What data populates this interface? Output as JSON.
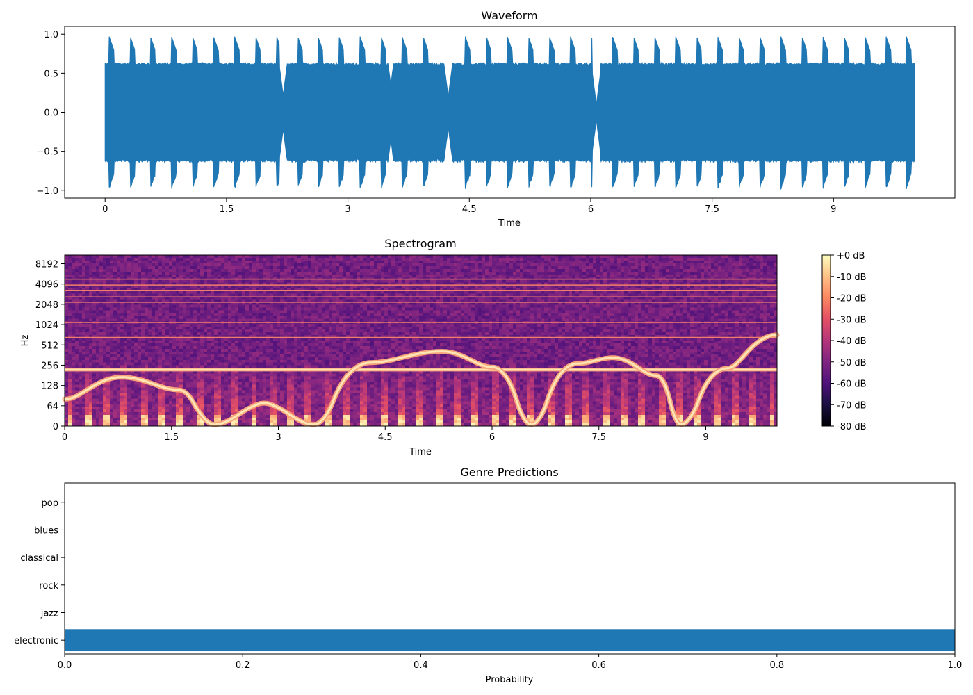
{
  "chart_data": [
    {
      "type": "line",
      "title": "Waveform",
      "xlabel": "Time",
      "ylabel": "",
      "xlim": [
        -0.5,
        10.5
      ],
      "ylim": [
        -1.1,
        1.1
      ],
      "xticks": [
        0,
        1.5,
        3,
        4.5,
        6,
        7.5,
        9
      ],
      "xtick_labels": [
        "0",
        "1.5",
        "3",
        "4.5",
        "6",
        "7.5",
        "9"
      ],
      "yticks": [
        -1.0,
        -0.5,
        0.0,
        0.5,
        1.0
      ],
      "ytick_labels": [
        "−1.0",
        "−0.5",
        "0.0",
        "0.5",
        "1.0"
      ],
      "duration": 10.0,
      "envelope": {
        "base_amplitude": 0.62,
        "transient_peak": 0.97,
        "transient_times": [
          0.05,
          0.31,
          0.56,
          0.82,
          1.08,
          1.34,
          1.6,
          1.86,
          2.12,
          2.38,
          2.63,
          2.89,
          3.15,
          3.41,
          3.67,
          3.93,
          4.19,
          4.45,
          4.71,
          4.97,
          5.23,
          5.49,
          5.75,
          6.01,
          6.27,
          6.53,
          6.79,
          7.05,
          7.31,
          7.57,
          7.83,
          8.09,
          8.35,
          8.61,
          8.87,
          9.13,
          9.39,
          9.65,
          9.9
        ],
        "dips": [
          [
            2.2,
            0.22
          ],
          [
            3.53,
            0.35
          ],
          [
            4.24,
            0.2
          ],
          [
            6.07,
            0.1
          ]
        ]
      },
      "color": "#1f77b4"
    },
    {
      "type": "heatmap",
      "title": "Spectrogram",
      "xlabel": "Time",
      "ylabel": "Hz",
      "xlim": [
        0,
        10
      ],
      "xticks": [
        0,
        1.5,
        3,
        4.5,
        6,
        7.5,
        9
      ],
      "xtick_labels": [
        "0",
        "1.5",
        "3",
        "4.5",
        "6",
        "7.5",
        "9"
      ],
      "yscale": "symlog",
      "yticks": [
        0,
        64,
        128,
        256,
        512,
        1024,
        2048,
        4096,
        8192
      ],
      "ytick_labels": [
        "0",
        "64",
        "128",
        "256",
        "512",
        "1024",
        "2048",
        "4096",
        "8192"
      ],
      "ylim": [
        0,
        11025
      ],
      "harmonic_lines_hz": [
        220,
        660,
        1100,
        2200,
        2640,
        3300,
        3960,
        4840
      ],
      "sweep": {
        "points": [
          [
            0,
            80
          ],
          [
            0.8,
            170
          ],
          [
            1.6,
            110
          ],
          [
            2.1,
            5
          ],
          [
            2.8,
            70
          ],
          [
            3.5,
            5
          ],
          [
            4.3,
            280
          ],
          [
            5.3,
            410
          ],
          [
            6.0,
            240
          ],
          [
            6.55,
            5
          ],
          [
            7.2,
            270
          ],
          [
            7.7,
            330
          ],
          [
            8.3,
            180
          ],
          [
            8.65,
            5
          ],
          [
            9.3,
            230
          ],
          [
            10,
            720
          ]
        ]
      },
      "colorbar": {
        "ticks": [
          0,
          -10,
          -20,
          -30,
          -40,
          -50,
          -60,
          -70,
          -80
        ],
        "labels": [
          "+0 dB",
          "-10 dB",
          "-20 dB",
          "-30 dB",
          "-40 dB",
          "-50 dB",
          "-60 dB",
          "-70 dB",
          "-80 dB"
        ],
        "range": [
          -80,
          0
        ],
        "colormap": "magma"
      }
    },
    {
      "type": "bar",
      "orientation": "horizontal",
      "title": "Genre Predictions",
      "xlabel": "Probability",
      "ylabel": "",
      "categories": [
        "pop",
        "blues",
        "classical",
        "rock",
        "jazz",
        "electronic"
      ],
      "values": [
        0.0,
        0.0,
        0.0,
        0.0,
        0.0,
        1.0
      ],
      "xlim": [
        0,
        1.0
      ],
      "xticks": [
        0.0,
        0.2,
        0.4,
        0.6,
        0.8,
        1.0
      ],
      "xtick_labels": [
        "0.0",
        "0.2",
        "0.4",
        "0.6",
        "0.8",
        "1.0"
      ],
      "color": "#1f77b4"
    }
  ]
}
